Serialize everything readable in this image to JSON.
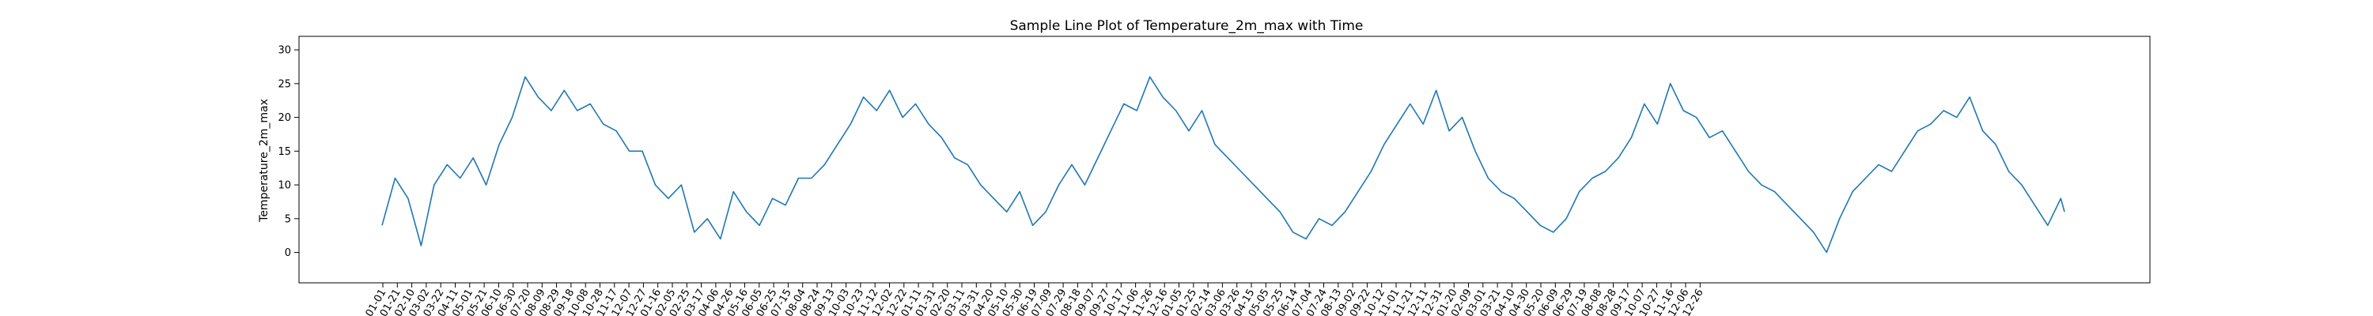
{
  "chart_data": {
    "type": "line",
    "title": "Sample Line Plot of Temperature_2m_max with Time",
    "xlabel": "",
    "ylabel": "Temperature_2m_max",
    "ylim": [
      -4.5,
      32
    ],
    "y_ticks": [
      0,
      5,
      10,
      15,
      20,
      25,
      30
    ],
    "grid": false,
    "series_color": "#1f77b4",
    "x_tick_labels": [
      "01-01",
      "01-21",
      "02-10",
      "03-02",
      "03-22",
      "04-11",
      "05-01",
      "05-21",
      "06-10",
      "06-30",
      "07-20",
      "08-09",
      "08-29",
      "09-18",
      "10-08",
      "10-28",
      "11-17",
      "12-07",
      "12-27",
      "01-16",
      "02-05",
      "02-25",
      "03-17",
      "04-06",
      "04-26",
      "05-16",
      "06-05",
      "06-25",
      "07-15",
      "08-04",
      "08-24",
      "09-13",
      "10-03",
      "10-23",
      "11-12",
      "12-02",
      "12-22",
      "01-11",
      "01-31",
      "02-20",
      "03-11",
      "03-31",
      "04-20",
      "05-10",
      "05-30",
      "06-19",
      "07-09",
      "07-29",
      "08-18",
      "09-07",
      "09-27",
      "10-17",
      "11-06",
      "11-26",
      "12-16",
      "01-05",
      "01-25",
      "02-14",
      "03-06",
      "03-26",
      "04-15",
      "05-05",
      "05-25",
      "06-14",
      "07-04",
      "07-24",
      "08-13",
      "09-02",
      "09-22",
      "10-12",
      "11-01",
      "11-21",
      "12-11",
      "12-31",
      "01-20",
      "02-09",
      "03-01",
      "03-21",
      "04-10",
      "04-30",
      "05-20",
      "06-09",
      "06-29",
      "07-19",
      "08-08",
      "08-28",
      "09-17",
      "10-07",
      "10-27",
      "11-16",
      "12-06",
      "12-26"
    ],
    "x": [
      0,
      14,
      28,
      42,
      56,
      70,
      84,
      98,
      112,
      126,
      140,
      154,
      168,
      182,
      196,
      210,
      224,
      238,
      252,
      266,
      280,
      294,
      308,
      322,
      336,
      350,
      364,
      378,
      392,
      406,
      420,
      434,
      448,
      462,
      476,
      490,
      504,
      518,
      532,
      546,
      560,
      574,
      588,
      602,
      616,
      630,
      644,
      658,
      672,
      686,
      700,
      714,
      728,
      742,
      756,
      770,
      784,
      798,
      812,
      826,
      840,
      854,
      868,
      882,
      896,
      910,
      924,
      938,
      952,
      966,
      980,
      994,
      1008,
      1022,
      1036,
      1050,
      1064,
      1078,
      1092,
      1106,
      1120,
      1134,
      1148,
      1162,
      1176,
      1190,
      1204,
      1218,
      1232,
      1246,
      1260,
      1274,
      1288,
      1302,
      1316,
      1330,
      1344,
      1358,
      1372,
      1386,
      1400,
      1414,
      1428,
      1442,
      1456,
      1470,
      1484,
      1498,
      1512,
      1526,
      1540,
      1554,
      1568,
      1582,
      1596,
      1610,
      1624,
      1638,
      1652,
      1666,
      1680,
      1694,
      1708,
      1722,
      1736,
      1750,
      1764,
      1778,
      1792,
      1806,
      1810
    ],
    "y": [
      4,
      11,
      8,
      1,
      10,
      13,
      11,
      14,
      10,
      16,
      20,
      26,
      23,
      21,
      24,
      21,
      22,
      19,
      18,
      15,
      15,
      10,
      8,
      10,
      3,
      5,
      2,
      9,
      6,
      4,
      8,
      7,
      11,
      11,
      13,
      16,
      19,
      23,
      21,
      24,
      20,
      22,
      19,
      17,
      14,
      13,
      10,
      8,
      6,
      9,
      4,
      6,
      10,
      13,
      10,
      14,
      18,
      22,
      21,
      26,
      23,
      21,
      18,
      21,
      16,
      14,
      12,
      10,
      8,
      6,
      3,
      2,
      5,
      4,
      6,
      9,
      12,
      16,
      19,
      22,
      19,
      24,
      18,
      20,
      15,
      11,
      9,
      8,
      6,
      4,
      3,
      5,
      9,
      11,
      12,
      14,
      17,
      22,
      19,
      25,
      21,
      20,
      17,
      18,
      15,
      12,
      10,
      9,
      7,
      5,
      3,
      0,
      5,
      9,
      11,
      13,
      12,
      15,
      18,
      19,
      21,
      20,
      23,
      18,
      16,
      12,
      10,
      7,
      4,
      8,
      6
    ]
  }
}
